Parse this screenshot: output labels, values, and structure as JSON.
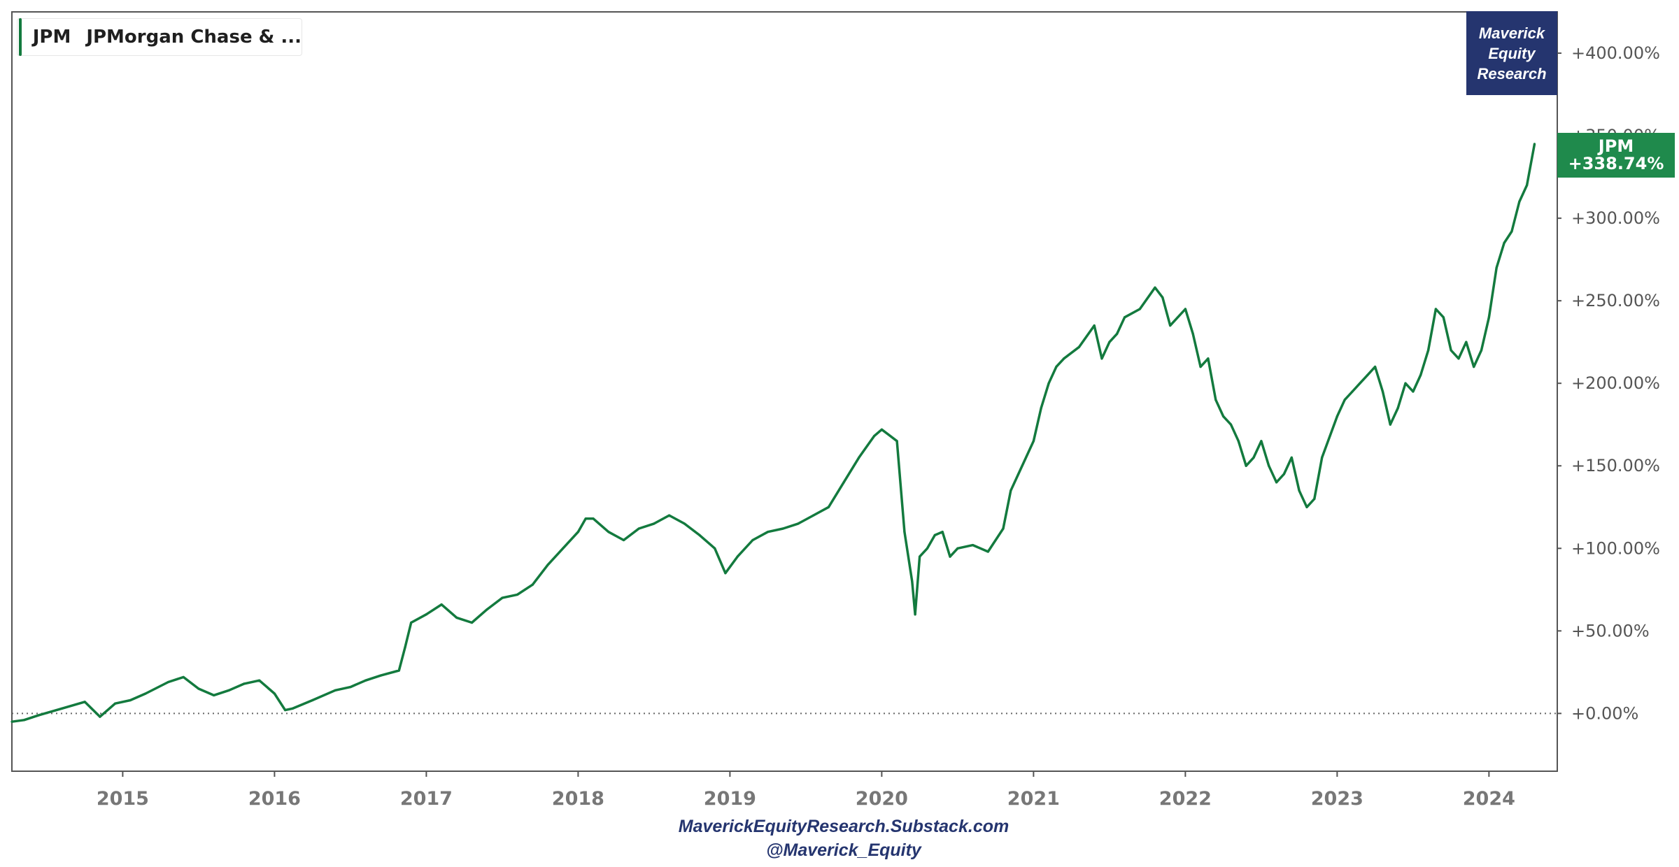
{
  "legend": {
    "symbol": "JPM",
    "name": "JPMorgan Chase & ...",
    "color": "#137a3e"
  },
  "brand": {
    "line1": "Maverick",
    "line2": "Equity",
    "line3": "Research",
    "color": "#25356f"
  },
  "badge": {
    "symbol": "JPM",
    "value": "+338.74%",
    "color": "#1f8a4c"
  },
  "footer": {
    "line1": "MaverickEquityResearch.Substack.com",
    "line2": "@Maverick_Equity"
  },
  "chart_data": {
    "type": "line",
    "title": "",
    "xlabel": "",
    "ylabel": "",
    "x_range": [
      2014.27,
      2024.45
    ],
    "ylim": [
      -35,
      425
    ],
    "x_ticks": [
      2015,
      2016,
      2017,
      2018,
      2019,
      2020,
      2021,
      2022,
      2023,
      2024
    ],
    "x_tick_labels": [
      "2015",
      "2016",
      "2017",
      "2018",
      "2019",
      "2020",
      "2021",
      "2022",
      "2023",
      "2024"
    ],
    "y_ticks": [
      0,
      50,
      100,
      150,
      200,
      250,
      300,
      350,
      400
    ],
    "y_tick_labels": [
      "+0.00%",
      "+50.00%",
      "+100.00%",
      "+150.00%",
      "+200.00%",
      "+250.00%",
      "+300.00%",
      "+350.00%",
      "+400.00%"
    ],
    "baseline": 0,
    "grid": false,
    "legend_position": "top-left",
    "series": [
      {
        "name": "JPM",
        "color": "#137a3e",
        "x": [
          2014.27,
          2014.35,
          2014.45,
          2014.6,
          2014.75,
          2014.85,
          2014.95,
          2015.05,
          2015.15,
          2015.3,
          2015.4,
          2015.5,
          2015.6,
          2015.7,
          2015.8,
          2015.9,
          2016.0,
          2016.07,
          2016.12,
          2016.25,
          2016.4,
          2016.5,
          2016.6,
          2016.7,
          2016.82,
          2016.86,
          2016.9,
          2017.0,
          2017.1,
          2017.2,
          2017.3,
          2017.4,
          2017.5,
          2017.6,
          2017.7,
          2017.8,
          2017.9,
          2018.0,
          2018.05,
          2018.1,
          2018.2,
          2018.3,
          2018.4,
          2018.5,
          2018.6,
          2018.7,
          2018.8,
          2018.9,
          2018.97,
          2019.05,
          2019.15,
          2019.25,
          2019.35,
          2019.45,
          2019.55,
          2019.65,
          2019.75,
          2019.85,
          2019.95,
          2020.0,
          2020.1,
          2020.15,
          2020.2,
          2020.22,
          2020.25,
          2020.3,
          2020.35,
          2020.4,
          2020.45,
          2020.5,
          2020.6,
          2020.7,
          2020.8,
          2020.85,
          2020.9,
          2021.0,
          2021.05,
          2021.1,
          2021.15,
          2021.2,
          2021.3,
          2021.4,
          2021.45,
          2021.5,
          2021.55,
          2021.6,
          2021.7,
          2021.8,
          2021.85,
          2021.9,
          2022.0,
          2022.05,
          2022.1,
          2022.15,
          2022.2,
          2022.25,
          2022.3,
          2022.35,
          2022.4,
          2022.45,
          2022.5,
          2022.55,
          2022.6,
          2022.65,
          2022.7,
          2022.75,
          2022.8,
          2022.85,
          2022.9,
          2023.0,
          2023.05,
          2023.1,
          2023.15,
          2023.2,
          2023.25,
          2023.3,
          2023.35,
          2023.4,
          2023.45,
          2023.5,
          2023.55,
          2023.6,
          2023.65,
          2023.7,
          2023.75,
          2023.8,
          2023.85,
          2023.9,
          2023.95,
          2024.0,
          2024.05,
          2024.1,
          2024.15,
          2024.2,
          2024.25,
          2024.3
        ],
        "values": [
          -5,
          -4,
          -1,
          3,
          7,
          -2,
          6,
          8,
          12,
          19,
          22,
          15,
          11,
          14,
          18,
          20,
          12,
          2,
          3,
          8,
          14,
          16,
          20,
          23,
          26,
          40,
          55,
          60,
          66,
          58,
          55,
          63,
          70,
          72,
          78,
          90,
          100,
          110,
          118,
          118,
          110,
          105,
          112,
          115,
          120,
          115,
          108,
          100,
          85,
          95,
          105,
          110,
          112,
          115,
          120,
          125,
          140,
          155,
          168,
          172,
          165,
          110,
          80,
          60,
          95,
          100,
          108,
          110,
          95,
          100,
          102,
          98,
          112,
          135,
          145,
          165,
          185,
          200,
          210,
          215,
          222,
          235,
          215,
          225,
          230,
          240,
          245,
          258,
          252,
          235,
          245,
          230,
          210,
          215,
          190,
          180,
          175,
          165,
          150,
          155,
          165,
          150,
          140,
          145,
          155,
          135,
          125,
          130,
          155,
          180,
          190,
          195,
          200,
          205,
          210,
          195,
          175,
          185,
          200,
          195,
          205,
          220,
          245,
          240,
          220,
          215,
          225,
          210,
          220,
          240,
          270,
          285,
          292,
          310,
          320,
          345
        ]
      }
    ]
  }
}
